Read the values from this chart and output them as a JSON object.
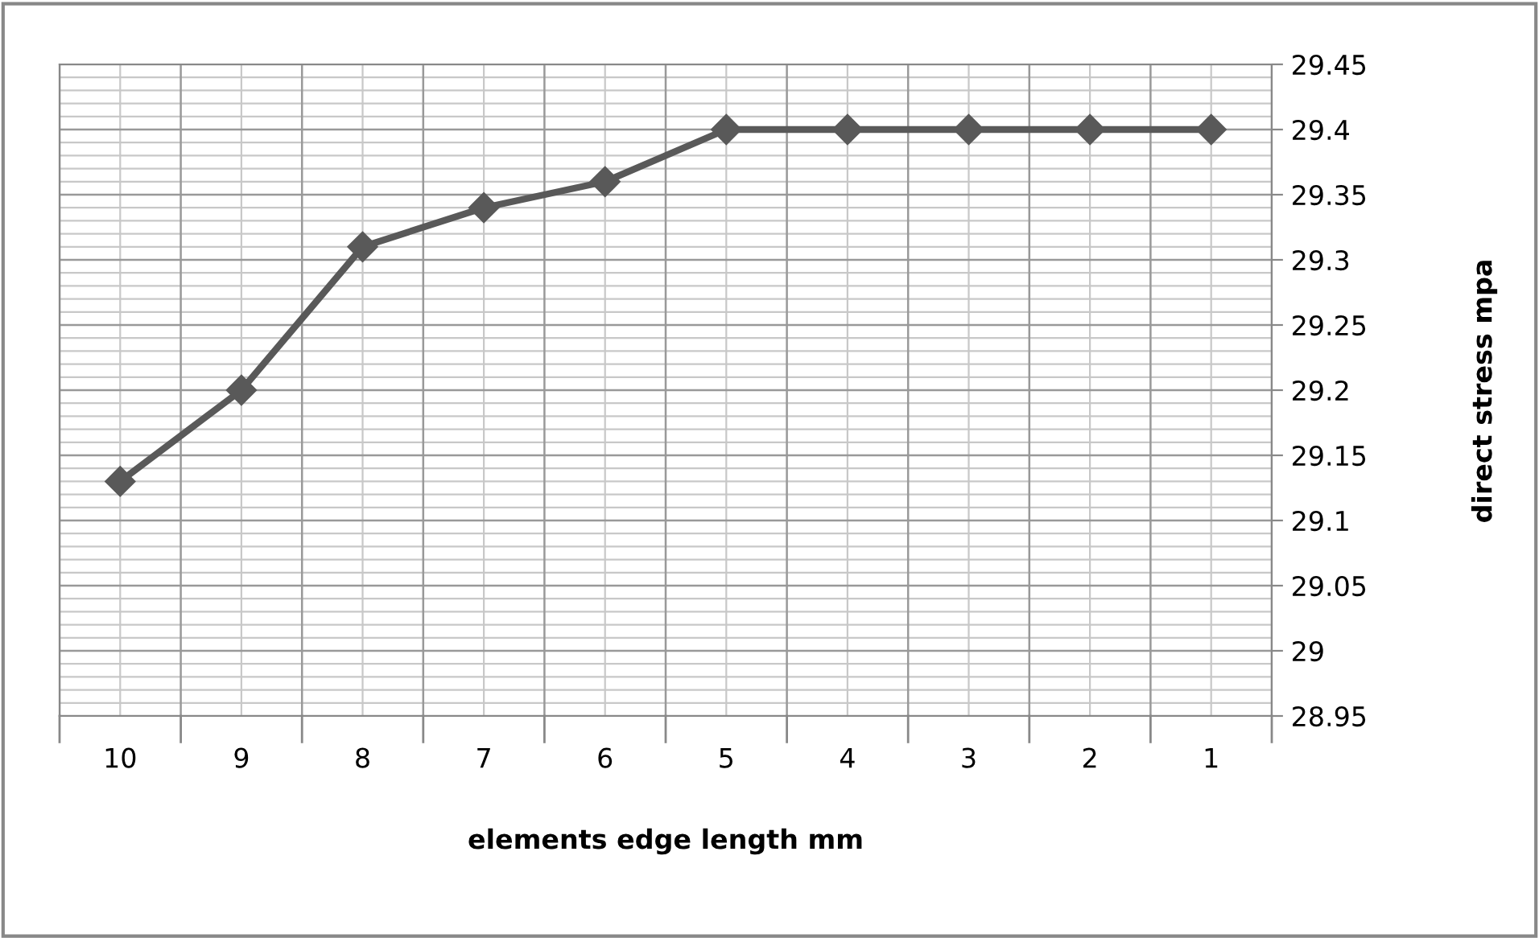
{
  "chart_data": {
    "type": "line",
    "xlabel": "elements edge length mm",
    "ylabel": "direct stress mpa",
    "categories": [
      "10",
      "9",
      "8",
      "7",
      "6",
      "5",
      "4",
      "3",
      "2",
      "1"
    ],
    "series": [
      {
        "color": "#595959",
        "values": [
          29.13,
          29.2,
          29.31,
          29.34,
          29.36,
          29.4,
          29.4,
          29.4,
          29.4,
          29.4
        ]
      }
    ],
    "ylim": [
      28.95,
      29.45
    ],
    "yticks": [
      {
        "value": 28.95,
        "label": "28.95"
      },
      {
        "value": 29.0,
        "label": "29"
      },
      29.05,
      {
        "value": 29.1,
        "label": "29.1"
      },
      29.15,
      {
        "value": 29.2,
        "label": "29.2"
      },
      29.25,
      {
        "value": 29.3,
        "label": "29.3"
      },
      29.35,
      {
        "value": 29.4,
        "label": "29.4"
      },
      29.45
    ],
    "grid": true,
    "marker": "diamond",
    "line_style": "solid",
    "legend": false
  }
}
